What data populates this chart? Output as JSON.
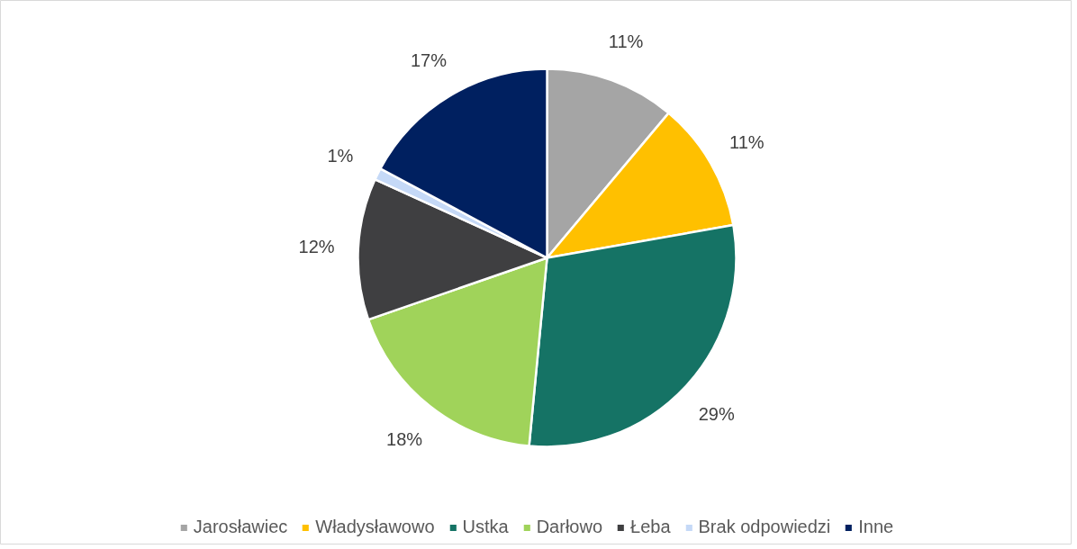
{
  "chart_data": {
    "type": "pie",
    "categories": [
      "Jarosławiec",
      "Władysławowo",
      "Ustka",
      "Darłowo",
      "Łeba",
      "Brak odpowiedzi",
      "Inne"
    ],
    "values": [
      11,
      11,
      29,
      18,
      12,
      1,
      17
    ],
    "colors": [
      "#a5a5a5",
      "#ffc000",
      "#157365",
      "#a0d35a",
      "#3f3f41",
      "#c5d9f7",
      "#002060"
    ],
    "value_labels": [
      "11%",
      "11%",
      "29%",
      "18%",
      "12%",
      "1%",
      "17%"
    ],
    "legend": "bottom"
  }
}
